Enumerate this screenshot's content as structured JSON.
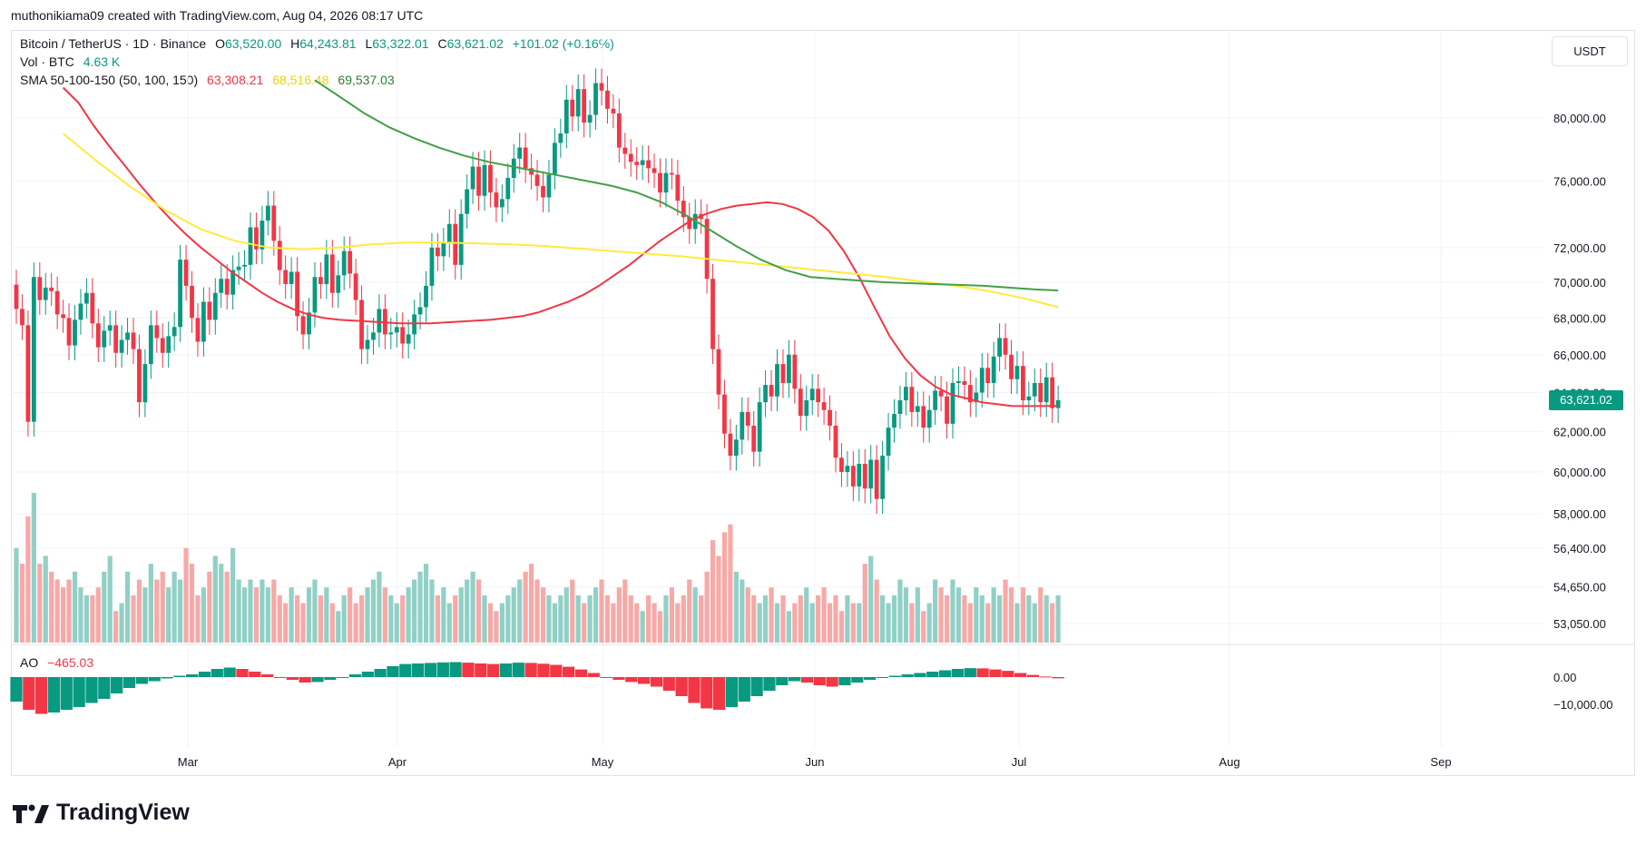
{
  "header": {
    "created_by": "muthonikiama09 created with TradingView.com, Aug 04, 2026 08:17 UTC"
  },
  "legend": {
    "symbol": "Bitcoin / TetherUS · 1D · Binance",
    "o_label": "O",
    "o_value": "63,520.00",
    "h_label": "H",
    "h_value": "64,243.81",
    "l_label": "L",
    "l_value": "63,322.01",
    "c_label": "C",
    "c_value": "63,621.02",
    "change": "+101.02 (+0.16%)",
    "vol_label": "Vol · BTC",
    "vol_value": "4.63 K",
    "sma_label": "SMA 50-100-150 (50, 100, 150)",
    "sma50_value": "63,308.21",
    "sma100_value": "68,516.48",
    "sma150_value": "69,537.03",
    "ao_label": "AO",
    "ao_value": "−465.03"
  },
  "currency_button": "USDT",
  "last_price_badge": "63,621.02",
  "brand": "TradingView",
  "colors": {
    "up": "#089981",
    "down": "#f23645",
    "vol_up": "#91d0c6",
    "vol_down": "#f7a9a7",
    "sma50": "#f23645",
    "sma100": "#ffeb3b",
    "sma150": "#43a047",
    "ao_up": "#089981",
    "ao_down": "#f23645"
  },
  "chart_data": {
    "type": "candlestick",
    "timeframe": "1D",
    "symbol": "BTCUSDT",
    "x_labels": [
      "Mar",
      "Apr",
      "May",
      "Jun",
      "Jul",
      "Aug",
      "Sep"
    ],
    "price_axis_labels": [
      "80,000.00",
      "76,000.00",
      "72,000.00",
      "70,000.00",
      "68,000.00",
      "66,000.00",
      "64,000.00",
      "62,000.00",
      "60,000.00",
      "58,000.00",
      "56,400.00",
      "54,650.00",
      "53,050.00"
    ],
    "ao_axis_labels": [
      "0.00",
      "−10,000.00"
    ],
    "price_scale": "log",
    "closes": [
      68500,
      67600,
      62500,
      70300,
      69000,
      69700,
      69500,
      68200,
      68000,
      66500,
      67900,
      68800,
      69400,
      67700,
      66400,
      67300,
      67600,
      66100,
      66800,
      67200,
      66300,
      63500,
      65500,
      67600,
      66900,
      66100,
      67000,
      67500,
      71300,
      69800,
      68000,
      66700,
      68900,
      67900,
      69400,
      70200,
      69300,
      70700,
      70900,
      71000,
      73200,
      71900,
      73600,
      74500,
      72400,
      70700,
      69900,
      70600,
      68100,
      67100,
      68300,
      70300,
      69900,
      71600,
      69400,
      70400,
      71800,
      70500,
      69000,
      66300,
      66800,
      67200,
      68500,
      67100,
      67200,
      67500,
      66600,
      67100,
      68200,
      68600,
      69800,
      72000,
      71500,
      72300,
      73400,
      71000,
      74000,
      75500,
      76900,
      75100,
      77000,
      75300,
      74400,
      74900,
      76200,
      77400,
      78100,
      76800,
      76400,
      75700,
      75000,
      76400,
      78400,
      79000,
      81200,
      80100,
      81900,
      79700,
      80200,
      82300,
      81800,
      80600,
      80300,
      78100,
      77700,
      77200,
      77000,
      77300,
      76800,
      76500,
      75300,
      76500,
      76400,
      74800,
      73800,
      73100,
      74000,
      73700,
      70200,
      66300,
      63900,
      61900,
      60800,
      61600,
      63000,
      62300,
      61000,
      63500,
      64400,
      63800,
      65500,
      64500,
      66000,
      64200,
      62800,
      63600,
      64200,
      63500,
      63100,
      62300,
      60700,
      60000,
      60300,
      59300,
      60400,
      59200,
      60600,
      58700,
      60800,
      62200,
      62900,
      63600,
      64300,
      63000,
      63300,
      62200,
      63100,
      64100,
      63800,
      62400,
      64500,
      64600,
      64400,
      63500,
      64000,
      65300,
      64500,
      65900,
      66900,
      66000,
      64700,
      65400,
      63600,
      63800,
      64500,
      63500,
      64800,
      63200,
      63600
    ],
    "volume_btc_k": [
      12,
      10,
      16,
      19,
      10,
      11,
      9,
      8,
      7,
      8,
      9,
      7,
      6,
      6,
      7,
      9,
      11,
      4,
      5,
      9,
      6,
      8,
      7,
      10,
      8,
      9,
      7,
      9,
      8,
      12,
      10,
      6,
      7,
      9,
      11,
      10,
      9,
      12,
      8,
      7,
      8,
      7,
      8,
      7,
      8,
      6,
      5,
      7,
      6,
      5,
      7,
      8,
      6,
      7,
      5,
      4,
      6,
      7,
      5,
      6,
      7,
      8,
      9,
      7,
      6,
      5,
      6,
      7,
      8,
      9,
      10,
      8,
      6,
      7,
      5,
      6,
      7,
      8,
      9,
      8,
      6,
      5,
      4,
      5,
      6,
      7,
      8,
      9,
      10,
      8,
      7,
      6,
      5,
      6,
      7,
      8,
      6,
      5,
      6,
      7,
      8,
      6,
      5,
      7,
      8,
      6,
      5,
      4,
      6,
      5,
      4,
      6,
      7,
      5,
      6,
      8,
      7,
      6,
      9,
      13,
      11,
      14,
      15,
      9,
      8,
      7,
      6,
      5,
      6,
      7,
      5,
      6,
      4,
      5,
      6,
      7,
      5,
      6,
      7,
      5,
      6,
      4,
      6,
      5,
      5,
      10,
      11,
      8,
      6,
      5,
      6,
      8,
      7,
      5,
      7,
      4,
      5,
      8,
      7,
      6,
      8,
      7,
      6,
      5,
      7,
      6,
      5,
      7,
      6,
      8,
      7,
      5,
      7,
      6,
      5,
      7,
      6,
      5,
      6,
      7,
      5,
      6,
      4,
      5,
      3
    ],
    "sma50": [
      82000,
      81000,
      79500,
      78200,
      77000,
      75800,
      74700,
      73700,
      72800,
      72000,
      71300,
      70600,
      70000,
      69400,
      68900,
      68500,
      68200,
      68000,
      67900,
      67850,
      67800,
      67750,
      67700,
      67700,
      67700,
      67750,
      67800,
      67850,
      67900,
      68000,
      68100,
      68300,
      68600,
      68900,
      69300,
      69800,
      70400,
      71000,
      71700,
      72400,
      73000,
      73600,
      74000,
      74300,
      74500,
      74600,
      74700,
      74600,
      74300,
      73800,
      73000,
      71800,
      70300,
      68600,
      67000,
      65800,
      64900,
      64300,
      63900,
      63700,
      63500,
      63400,
      63300,
      63300,
      63300,
      63310
    ],
    "sma100": [
      79000,
      77200,
      75600,
      74200,
      73100,
      72400,
      72000,
      71900,
      72000,
      72200,
      72300,
      72300,
      72250,
      72200,
      72100,
      71950,
      71800,
      71650,
      71500,
      71300,
      71100,
      70900,
      70700,
      70500,
      70300,
      70050,
      69800,
      69500,
      69100,
      68600
    ],
    "sma150": [
      82500,
      81400,
      80300,
      79400,
      78700,
      78100,
      77600,
      77200,
      76900,
      76600,
      76300,
      76000,
      75700,
      75300,
      74700,
      73900,
      73000,
      72100,
      71300,
      70700,
      70300,
      70200,
      70100,
      70000,
      69950,
      69900,
      69850,
      69800,
      69700,
      69600,
      69540
    ],
    "ao": [
      -9000,
      -12000,
      -13500,
      -13000,
      -12000,
      -11000,
      -9500,
      -8000,
      -6000,
      -4000,
      -2500,
      -1500,
      -500,
      500,
      1000,
      2000,
      3000,
      3500,
      3000,
      2000,
      1000,
      0,
      -1000,
      -2000,
      -1800,
      -1000,
      0,
      1000,
      2000,
      3000,
      4000,
      4800,
      5000,
      5200,
      5400,
      5500,
      5300,
      5000,
      4800,
      5000,
      5300,
      5200,
      4900,
      4500,
      3800,
      2800,
      1500,
      0,
      -1000,
      -1800,
      -2500,
      -3500,
      -5000,
      -7000,
      -9500,
      -11500,
      -12000,
      -11000,
      -9000,
      -7000,
      -5000,
      -3000,
      -1500,
      -2000,
      -3000,
      -3500,
      -3000,
      -2000,
      -1000,
      0,
      500,
      1000,
      1500,
      2000,
      2500,
      3000,
      3300,
      3200,
      2800,
      2300,
      1500,
      800,
      200,
      -465
    ]
  }
}
